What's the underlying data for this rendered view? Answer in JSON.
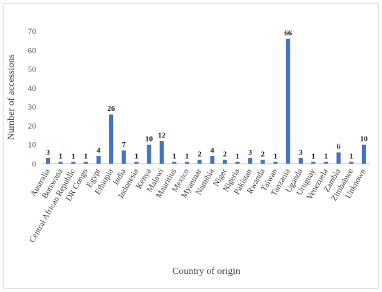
{
  "chart_data": {
    "type": "bar",
    "title": "",
    "xlabel": "Country of origin",
    "ylabel": "Number of accessions",
    "ylim": [
      0,
      70
    ],
    "yticks": [
      0,
      10,
      20,
      30,
      40,
      50,
      60,
      70
    ],
    "grid": false,
    "bar_color": "#4472c4",
    "categories": [
      "Australia",
      "Botswana",
      "Central African Republic",
      "DR Congo",
      "Egypt",
      "Ethiopia",
      "India",
      "Indonesia",
      "Kenya",
      "Malawi",
      "Mauritius",
      "Mexico",
      "Myanmar",
      "Namibia",
      "Niger",
      "Nigeria",
      "Pakistan",
      "Rwanda",
      "Taiwan",
      "Tanzania",
      "Uganda",
      "Uruguay",
      "Venezuela",
      "Zambia",
      "Zimbabwe",
      "Unknown"
    ],
    "values": [
      3,
      1,
      1,
      1,
      4,
      26,
      7,
      1,
      10,
      12,
      1,
      1,
      2,
      4,
      2,
      1,
      3,
      2,
      1,
      66,
      3,
      1,
      1,
      6,
      1,
      10
    ]
  }
}
